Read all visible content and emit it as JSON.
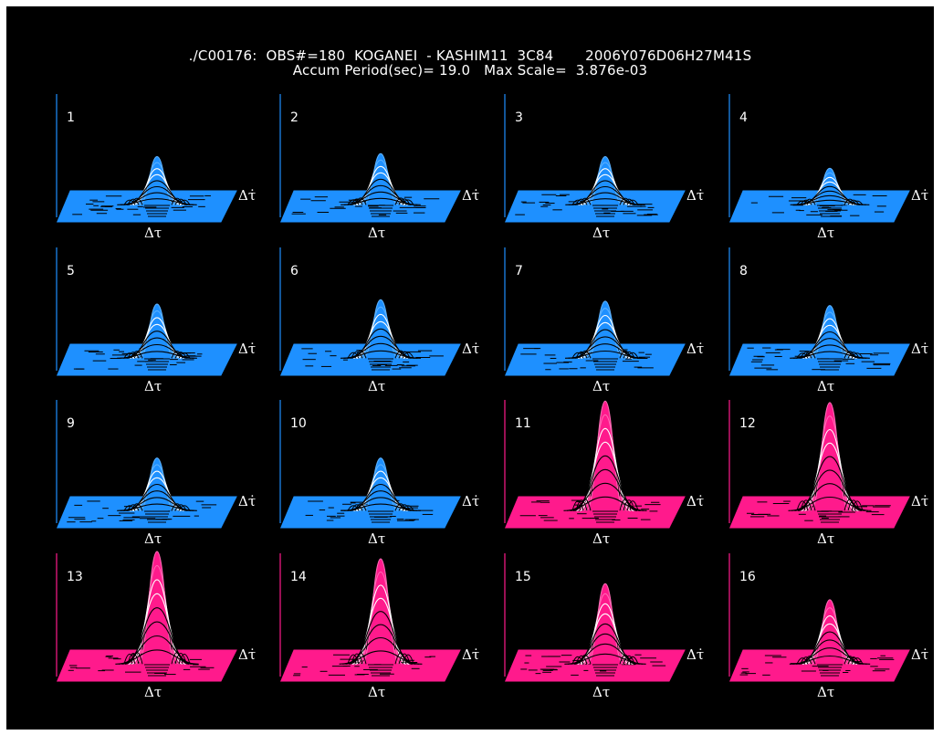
{
  "header": {
    "line1": "./C00176:  OBS#=180  KOGANEI  - KASHIM11  3C84       2006Y076D06H27M41S",
    "line2": "Accum Period(sec)= 19.0   Max Scale=  3.876e-03"
  },
  "colors": {
    "background": "#000000",
    "blue_panel": "#1e90ff",
    "pink_panel": "#ff1a8c",
    "contour": "#000000",
    "text": "#ffffff"
  },
  "chart_data": {
    "type": "surface-grid",
    "x_axis_label": "Δτ",
    "y_axis_label": "Δτ̇",
    "panels": [
      {
        "label": "1",
        "color": "blue",
        "peak": 0.33
      },
      {
        "label": "2",
        "color": "blue",
        "peak": 0.35
      },
      {
        "label": "3",
        "color": "blue",
        "peak": 0.33
      },
      {
        "label": "4",
        "color": "blue",
        "peak": 0.25
      },
      {
        "label": "5",
        "color": "blue",
        "peak": 0.37
      },
      {
        "label": "6",
        "color": "blue",
        "peak": 0.4
      },
      {
        "label": "7",
        "color": "blue",
        "peak": 0.39
      },
      {
        "label": "8",
        "color": "blue",
        "peak": 0.36
      },
      {
        "label": "9",
        "color": "blue",
        "peak": 0.36
      },
      {
        "label": "10",
        "color": "blue",
        "peak": 0.36
      },
      {
        "label": "11",
        "color": "pink",
        "peak": 0.75
      },
      {
        "label": "12",
        "color": "pink",
        "peak": 0.74
      },
      {
        "label": "13",
        "color": "pink",
        "peak": 0.77
      },
      {
        "label": "14",
        "color": "pink",
        "peak": 0.72
      },
      {
        "label": "15",
        "color": "pink",
        "peak": 0.55
      },
      {
        "label": "16",
        "color": "pink",
        "peak": 0.44
      }
    ]
  }
}
